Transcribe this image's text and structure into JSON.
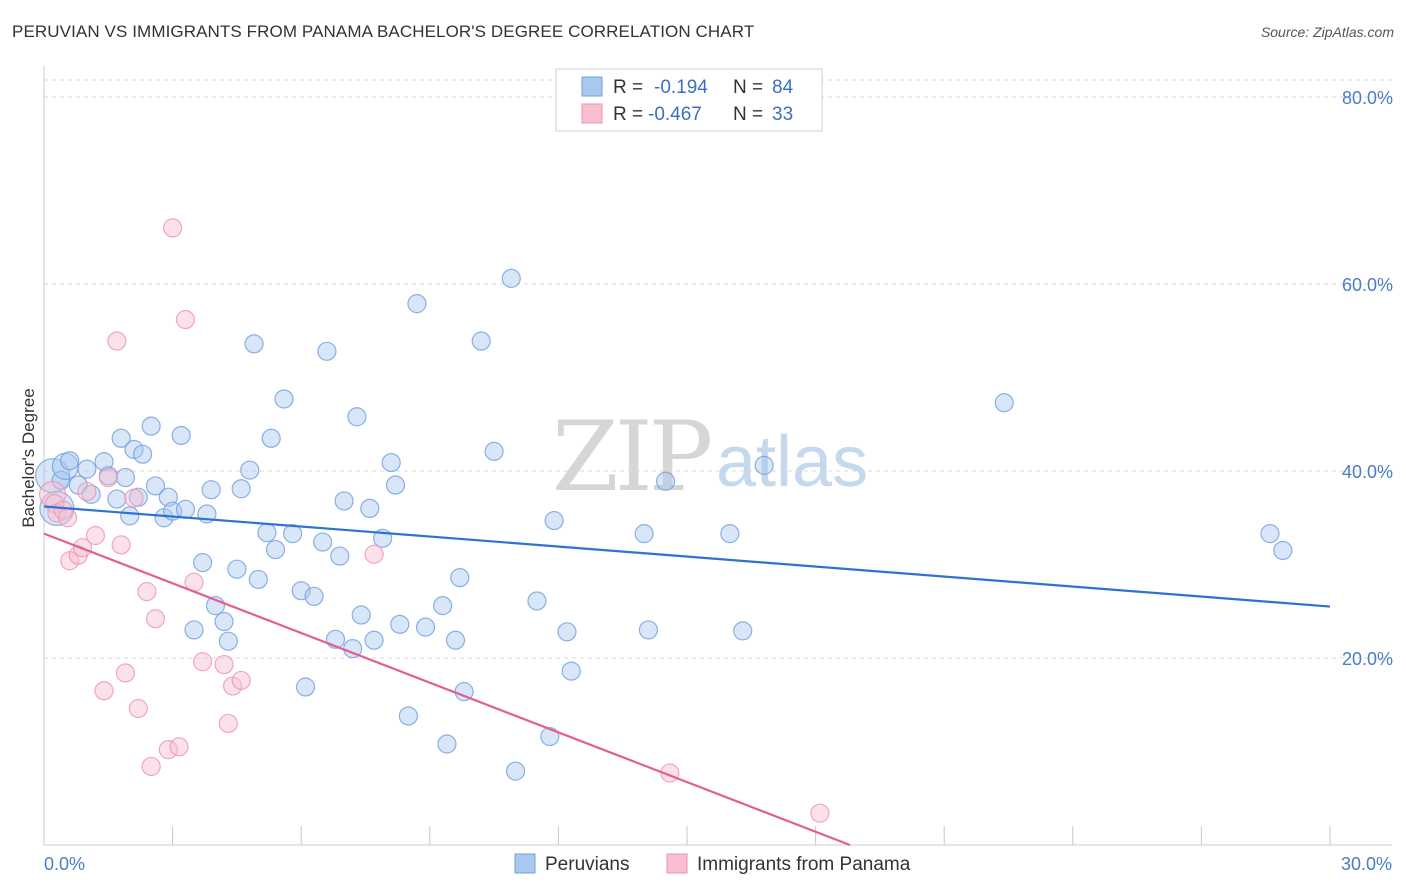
{
  "header": {
    "title": "PERUVIAN VS IMMIGRANTS FROM PANAMA BACHELOR'S DEGREE CORRELATION CHART",
    "source": "Source: ZipAtlas.com"
  },
  "watermark": {
    "zip": "ZIP",
    "atlas": "atlas"
  },
  "legend": {
    "rows": [
      {
        "r_label": "R =",
        "r_value": "-0.194",
        "n_label": "N =",
        "n_value": "84"
      },
      {
        "r_label": "R =",
        "r_value": "-0.467",
        "n_label": "N =",
        "n_value": "33"
      }
    ]
  },
  "colors": {
    "series1_fill": "#a9c8f0",
    "series1_stroke": "#6e9fde",
    "series1_line": "#2f73d0",
    "series2_fill": "#f7bfd0",
    "series2_stroke": "#ec93b1",
    "series2_line": "#e0608e",
    "grid": "#d9d9d9",
    "axis_tick": "#4a7cc7"
  },
  "chart_data": {
    "type": "scatter",
    "title": "PERUVIAN VS IMMIGRANTS FROM PANAMA BACHELOR'S DEGREE CORRELATION CHART",
    "xlabel": "",
    "ylabel": "Bachelor's Degree",
    "xlim": [
      0,
      30
    ],
    "ylim": [
      0,
      80
    ],
    "x_tick_labels": [
      "0.0%",
      "30.0%"
    ],
    "y_ticks": [
      20,
      40,
      60,
      80
    ],
    "y_tick_labels": [
      "20.0%",
      "40.0%",
      "60.0%",
      "80.0%"
    ],
    "grid": true,
    "legend_position": "bottom-center",
    "series": [
      {
        "name": "Peruvians",
        "r": -0.194,
        "n": 84,
        "trend": {
          "x0": 0,
          "y0": 36.2,
          "x1": 30,
          "y1": 25.5
        },
        "points": [
          {
            "x": 0.2,
            "y": 39.5,
            "s": "l"
          },
          {
            "x": 0.3,
            "y": 36.0,
            "s": "l"
          },
          {
            "x": 0.4,
            "y": 39.0
          },
          {
            "x": 0.5,
            "y": 40.5,
            "s": "m"
          },
          {
            "x": 0.8,
            "y": 38.5
          },
          {
            "x": 1.0,
            "y": 40.2
          },
          {
            "x": 1.1,
            "y": 37.5
          },
          {
            "x": 1.4,
            "y": 41.0
          },
          {
            "x": 1.5,
            "y": 39.5
          },
          {
            "x": 1.7,
            "y": 37.0
          },
          {
            "x": 1.8,
            "y": 43.5
          },
          {
            "x": 1.9,
            "y": 39.3
          },
          {
            "x": 2.1,
            "y": 42.3
          },
          {
            "x": 2.2,
            "y": 37.2
          },
          {
            "x": 2.3,
            "y": 41.8
          },
          {
            "x": 2.5,
            "y": 44.8
          },
          {
            "x": 2.6,
            "y": 38.4
          },
          {
            "x": 2.8,
            "y": 35.0
          },
          {
            "x": 2.9,
            "y": 37.2
          },
          {
            "x": 3.0,
            "y": 35.7
          },
          {
            "x": 3.2,
            "y": 43.8
          },
          {
            "x": 3.3,
            "y": 35.9
          },
          {
            "x": 3.5,
            "y": 23.0
          },
          {
            "x": 3.7,
            "y": 30.2
          },
          {
            "x": 3.8,
            "y": 35.4
          },
          {
            "x": 3.9,
            "y": 38.0
          },
          {
            "x": 4.0,
            "y": 25.6
          },
          {
            "x": 4.2,
            "y": 23.9
          },
          {
            "x": 4.3,
            "y": 21.8
          },
          {
            "x": 4.5,
            "y": 29.5
          },
          {
            "x": 4.6,
            "y": 38.1
          },
          {
            "x": 4.8,
            "y": 40.1
          },
          {
            "x": 4.9,
            "y": 53.6
          },
          {
            "x": 5.0,
            "y": 28.4
          },
          {
            "x": 5.2,
            "y": 33.4
          },
          {
            "x": 5.3,
            "y": 43.5
          },
          {
            "x": 5.4,
            "y": 31.6
          },
          {
            "x": 5.6,
            "y": 47.7
          },
          {
            "x": 5.8,
            "y": 33.3
          },
          {
            "x": 6.0,
            "y": 27.2
          },
          {
            "x": 6.1,
            "y": 16.9
          },
          {
            "x": 6.3,
            "y": 26.6
          },
          {
            "x": 6.5,
            "y": 32.4
          },
          {
            "x": 6.6,
            "y": 52.8
          },
          {
            "x": 6.8,
            "y": 22.0
          },
          {
            "x": 6.9,
            "y": 30.9
          },
          {
            "x": 7.0,
            "y": 36.8
          },
          {
            "x": 7.2,
            "y": 21.0
          },
          {
            "x": 7.3,
            "y": 45.8
          },
          {
            "x": 7.4,
            "y": 24.6
          },
          {
            "x": 7.6,
            "y": 36.0
          },
          {
            "x": 7.7,
            "y": 21.9
          },
          {
            "x": 7.9,
            "y": 32.8
          },
          {
            "x": 8.1,
            "y": 40.9
          },
          {
            "x": 8.2,
            "y": 38.5
          },
          {
            "x": 8.3,
            "y": 23.6
          },
          {
            "x": 8.5,
            "y": 13.8
          },
          {
            "x": 8.7,
            "y": 57.9
          },
          {
            "x": 8.9,
            "y": 23.3
          },
          {
            "x": 9.3,
            "y": 25.6
          },
          {
            "x": 9.4,
            "y": 10.8
          },
          {
            "x": 9.6,
            "y": 21.9
          },
          {
            "x": 9.7,
            "y": 28.6
          },
          {
            "x": 9.8,
            "y": 16.4
          },
          {
            "x": 10.2,
            "y": 53.9
          },
          {
            "x": 10.5,
            "y": 42.1
          },
          {
            "x": 10.9,
            "y": 60.6
          },
          {
            "x": 11.0,
            "y": 7.9
          },
          {
            "x": 11.5,
            "y": 26.1
          },
          {
            "x": 11.8,
            "y": 11.6
          },
          {
            "x": 11.9,
            "y": 34.7
          },
          {
            "x": 12.2,
            "y": 22.8
          },
          {
            "x": 12.3,
            "y": 18.6
          },
          {
            "x": 14.0,
            "y": 33.3
          },
          {
            "x": 14.1,
            "y": 23.0
          },
          {
            "x": 14.5,
            "y": 38.9
          },
          {
            "x": 16.0,
            "y": 33.3
          },
          {
            "x": 16.3,
            "y": 22.9
          },
          {
            "x": 16.8,
            "y": 40.6
          },
          {
            "x": 22.4,
            "y": 47.3
          },
          {
            "x": 28.6,
            "y": 33.3
          },
          {
            "x": 28.9,
            "y": 31.5
          },
          {
            "x": 2.0,
            "y": 35.2
          },
          {
            "x": 0.6,
            "y": 41.1
          }
        ]
      },
      {
        "name": "Immigrants from Panama",
        "r": -0.467,
        "n": 33,
        "trend": {
          "x0": 0,
          "y0": 33.3,
          "x1": 18.8,
          "y1": 0
        },
        "points": [
          {
            "x": 0.2,
            "y": 37.5,
            "s": "m"
          },
          {
            "x": 0.25,
            "y": 36.5
          },
          {
            "x": 0.3,
            "y": 35.5
          },
          {
            "x": 0.45,
            "y": 35.8
          },
          {
            "x": 0.55,
            "y": 35.0
          },
          {
            "x": 0.6,
            "y": 30.4
          },
          {
            "x": 0.8,
            "y": 31.0
          },
          {
            "x": 0.9,
            "y": 31.8
          },
          {
            "x": 1.0,
            "y": 37.8
          },
          {
            "x": 1.2,
            "y": 33.1
          },
          {
            "x": 1.4,
            "y": 16.5
          },
          {
            "x": 1.5,
            "y": 39.3
          },
          {
            "x": 1.7,
            "y": 53.9
          },
          {
            "x": 1.8,
            "y": 32.1
          },
          {
            "x": 1.9,
            "y": 18.4
          },
          {
            "x": 2.1,
            "y": 37.1
          },
          {
            "x": 2.2,
            "y": 14.6
          },
          {
            "x": 2.4,
            "y": 27.1
          },
          {
            "x": 2.5,
            "y": 8.4
          },
          {
            "x": 2.6,
            "y": 24.2
          },
          {
            "x": 2.9,
            "y": 10.2
          },
          {
            "x": 3.0,
            "y": 66.0
          },
          {
            "x": 3.15,
            "y": 10.5
          },
          {
            "x": 3.3,
            "y": 56.2
          },
          {
            "x": 3.5,
            "y": 28.1
          },
          {
            "x": 3.7,
            "y": 19.6
          },
          {
            "x": 4.2,
            "y": 19.3
          },
          {
            "x": 4.3,
            "y": 13.0
          },
          {
            "x": 4.4,
            "y": 17.0
          },
          {
            "x": 4.6,
            "y": 17.6
          },
          {
            "x": 7.7,
            "y": 31.1
          },
          {
            "x": 14.6,
            "y": 7.7
          },
          {
            "x": 18.1,
            "y": 3.4
          }
        ]
      }
    ]
  },
  "bottom_legend": {
    "items": [
      {
        "label": "Peruvians"
      },
      {
        "label": "Immigrants from Panama"
      }
    ]
  }
}
